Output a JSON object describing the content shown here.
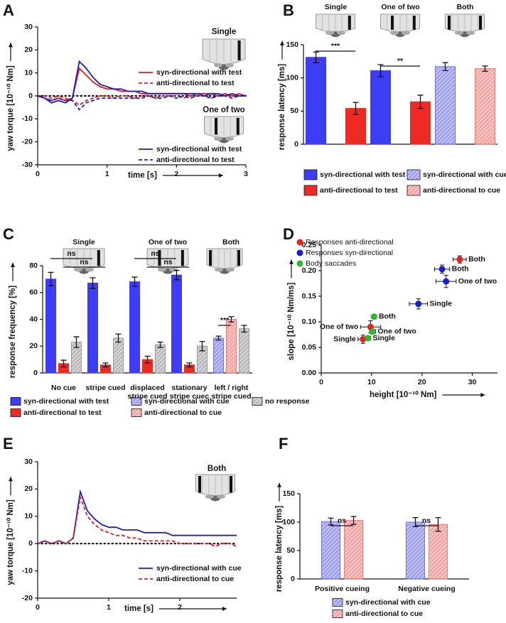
{
  "chart_data": [
    {
      "panel": "A",
      "type": "line",
      "x_label": "time  [s]",
      "y_label": "yaw torque  [10⁻¹⁰ Nm]",
      "x": [
        0,
        0.1,
        0.2,
        0.3,
        0.4,
        0.5,
        0.6,
        0.7,
        0.8,
        0.9,
        1,
        1.1,
        1.2,
        1.3,
        1.4,
        1.5,
        1.6,
        1.7,
        1.8,
        1.9,
        2,
        2.1,
        2.2,
        2.3,
        2.4,
        2.5,
        2.6,
        2.7,
        2.8,
        2.9,
        3
      ],
      "xlim": [
        0,
        3
      ],
      "xticks": [
        0,
        1,
        2,
        3
      ],
      "ylim": [
        -30,
        30
      ],
      "yticks": [
        -30,
        -20,
        -10,
        0,
        10,
        20,
        30
      ],
      "conditions": [
        "Single",
        "One of two"
      ],
      "series": [
        {
          "name": "syn-directional with test",
          "color": "#e01b1b",
          "dash": false,
          "values": [
            0,
            -1,
            -2,
            -1,
            -2,
            -1,
            12,
            9,
            6,
            4,
            3,
            3,
            2,
            2,
            2,
            1,
            1,
            1,
            1,
            1,
            1,
            1,
            0,
            1,
            1,
            1,
            0,
            1,
            0,
            1,
            0
          ]
        },
        {
          "name": "anti-directional to test",
          "color": "#e01b1b",
          "dash": true,
          "values": [
            0,
            0,
            -1,
            0,
            -1,
            -2,
            -4,
            -2,
            -1,
            0,
            0,
            -1,
            0,
            0,
            -1,
            0,
            0,
            -1,
            0,
            0,
            0,
            -1,
            0,
            0,
            0,
            -1,
            0,
            0,
            0,
            0,
            0
          ]
        },
        {
          "name": "syn-directional with test",
          "color": "#1f1fbf",
          "dash": false,
          "values": [
            0,
            -1,
            -3,
            -2,
            -3,
            -1,
            15,
            12,
            8,
            5,
            4,
            3,
            3,
            2,
            2,
            2,
            1,
            1,
            1,
            1,
            1,
            1,
            1,
            1,
            0,
            1,
            1,
            0,
            1,
            0,
            0
          ]
        },
        {
          "name": "anti-directional to test",
          "color": "#1f1fbf",
          "dash": true,
          "values": [
            0,
            -1,
            -2,
            -1,
            -2,
            -2,
            -6,
            -3,
            -2,
            -1,
            -1,
            -1,
            -1,
            -1,
            -1,
            -1,
            0,
            -1,
            -1,
            0,
            -1,
            0,
            -1,
            0,
            0,
            -1,
            0,
            0,
            -1,
            0,
            0
          ]
        }
      ]
    },
    {
      "panel": "B",
      "type": "bar",
      "categories": [
        "Single",
        "One of two",
        "Both"
      ],
      "y_label": "response latency  [ms]",
      "ylim": [
        0,
        150
      ],
      "yticks": [
        0,
        50,
        100,
        150
      ],
      "series": [
        {
          "name": "syn-directional with test",
          "color": "#3d3df5",
          "hatched": false,
          "values": [
            131,
            111,
            null
          ],
          "errors": [
            8,
            9,
            null
          ]
        },
        {
          "name": "anti-directional to test",
          "color": "#ee2a24",
          "hatched": false,
          "values": [
            54,
            64,
            null
          ],
          "errors": [
            9,
            10,
            null
          ]
        },
        {
          "name": "syn-directional with cue",
          "color": "#6f6ff0",
          "hatched": true,
          "values": [
            null,
            null,
            117
          ],
          "errors": [
            null,
            null,
            6
          ]
        },
        {
          "name": "anti-directional to cue",
          "color": "#f07a76",
          "hatched": true,
          "values": [
            null,
            null,
            114
          ],
          "errors": [
            null,
            null,
            4
          ]
        }
      ],
      "annotations": [
        "***",
        "**"
      ]
    },
    {
      "panel": "C",
      "type": "bar",
      "groups": [
        "Single",
        "One of two",
        "Both"
      ],
      "categories": [
        "No cue",
        "stripe cued",
        "displaced\nstripe cued",
        "stationary\nstripe cuec",
        "left / right\nstripe cued"
      ],
      "y_label": "response frequency  [%]",
      "ylim": [
        0,
        80
      ],
      "yticks": [
        0,
        20,
        40,
        60,
        80
      ],
      "series": [
        {
          "name": "syn-directional with test",
          "color": "#3d3df5",
          "hatched": false,
          "values": [
            70,
            67,
            68,
            73,
            null
          ],
          "errors": [
            5,
            4,
            3.5,
            3.5,
            null
          ]
        },
        {
          "name": "anti-directional to test",
          "color": "#ee2a24",
          "hatched": false,
          "values": [
            7,
            6,
            10,
            6,
            null
          ],
          "errors": [
            2.5,
            1.5,
            2.5,
            1.5,
            null
          ]
        },
        {
          "name": "syn-directional with cue",
          "color": "#6f6ff0",
          "hatched": true,
          "values": [
            null,
            null,
            null,
            null,
            26
          ],
          "errors": [
            null,
            null,
            null,
            null,
            1.5
          ]
        },
        {
          "name": "anti-directional to cue",
          "color": "#f07a76",
          "hatched": true,
          "values": [
            null,
            null,
            null,
            null,
            40
          ],
          "errors": [
            null,
            null,
            null,
            null,
            2
          ]
        },
        {
          "name": "no response",
          "color": "#9a9a9a",
          "hatched": true,
          "values": [
            23,
            26,
            21,
            20,
            33
          ],
          "errors": [
            4,
            3,
            2,
            3.5,
            2.5
          ]
        }
      ],
      "annotations": [
        "ns",
        "ns",
        "ns",
        "ns",
        "***"
      ]
    },
    {
      "panel": "D",
      "type": "scatter",
      "x_label": "height  [10⁻¹⁰ Nm]",
      "y_label": "slope  [10⁻¹⁰ Nm/ms]",
      "xlim": [
        0,
        35
      ],
      "xticks": [
        0,
        10,
        20,
        30
      ],
      "ylim": [
        0,
        0.25
      ],
      "yticks": [
        {
          "value": 0,
          "label": "0.00"
        },
        {
          "value": 0.05,
          "label": "0.05"
        },
        {
          "value": 0.1,
          "label": "0.10"
        },
        {
          "value": 0.15,
          "label": "0.15"
        },
        {
          "value": 0.2,
          "label": "0.20"
        },
        {
          "value": 0.25,
          "label": "0.25"
        }
      ],
      "series": [
        {
          "name": "Responses anti-directional",
          "color": "#e8231c",
          "x": [
            27.5,
            9.8,
            8.3
          ],
          "values": [
            0.222,
            0.09,
            0.066
          ],
          "x_errors": [
            1.3,
            2,
            1
          ],
          "errors": [
            0.007,
            0.012,
            0.008
          ],
          "labels": [
            "Both",
            "One of two",
            "Single"
          ]
        },
        {
          "name": "Responses syn-directional",
          "color": "#1c1cc8",
          "x": [
            24,
            24.8,
            19.3
          ],
          "values": [
            0.203,
            0.179,
            0.135
          ],
          "x_errors": [
            1.5,
            2,
            1.8
          ],
          "errors": [
            0.008,
            0.012,
            0.01
          ],
          "labels": [
            "Both",
            "One of two",
            "Single"
          ]
        },
        {
          "name": "Body saccades",
          "color": "#2db82d",
          "x": [
            10.5,
            10.2,
            9.3
          ],
          "values": [
            0.11,
            0.081,
            0.068
          ],
          "x_errors": [
            0.5,
            0.6,
            0.5
          ],
          "errors": [
            0.004,
            0.005,
            0.004
          ],
          "labels": [
            "Both",
            "One of two",
            "Single"
          ]
        }
      ]
    },
    {
      "panel": "E",
      "type": "line",
      "x_label": "time  [s]",
      "y_label": "yaw torque  [10⁻¹⁰ Nm]",
      "x": [
        0,
        0.1,
        0.2,
        0.3,
        0.4,
        0.5,
        0.6,
        0.7,
        0.8,
        0.9,
        1,
        1.1,
        1.2,
        1.3,
        1.4,
        1.5,
        1.6,
        1.7,
        1.8,
        1.9,
        2,
        2.1,
        2.2,
        2.3,
        2.4,
        2.5,
        2.6,
        2.7,
        2.8
      ],
      "xlim": [
        0,
        2.8
      ],
      "xticks": [
        0,
        1,
        2
      ],
      "ylim": [
        -20,
        30
      ],
      "yticks": [
        -20,
        -10,
        0,
        10,
        20,
        30
      ],
      "conditions": [
        "Both"
      ],
      "series": [
        {
          "name": "syn-directional with cue",
          "color": "#1f1fbf",
          "dash": false,
          "values": [
            0,
            1,
            0,
            1,
            0,
            2,
            19,
            12,
            9,
            7,
            6,
            6,
            5,
            5,
            5,
            4,
            4,
            4,
            4,
            3,
            3,
            3,
            3,
            3,
            3,
            3,
            3,
            3,
            3
          ]
        },
        {
          "name": "anti-directional to cue",
          "color": "#e01b1b",
          "dash": true,
          "values": [
            0,
            1,
            0,
            1,
            0,
            2,
            17,
            10,
            7,
            5,
            4,
            3,
            3,
            2,
            2,
            1,
            1,
            1,
            1,
            1,
            0,
            0,
            0,
            0,
            0,
            -1,
            0,
            0,
            -1
          ]
        }
      ]
    },
    {
      "panel": "F",
      "type": "bar",
      "categories": [
        "Positive cueing",
        "Negative cueing"
      ],
      "y_label": "response latency  [ms]",
      "ylim": [
        0,
        150
      ],
      "yticks": [
        0,
        50,
        100,
        150
      ],
      "series": [
        {
          "name": "syn-directional with cue",
          "color": "#6f6ff0",
          "hatched": true,
          "values": [
            101,
            100
          ],
          "errors": [
            6,
            8
          ]
        },
        {
          "name": "anti-directional to cue",
          "color": "#f07a76",
          "hatched": true,
          "values": [
            103,
            96
          ],
          "errors": [
            7,
            12
          ]
        }
      ],
      "annotations": [
        "ns",
        "ns"
      ]
    }
  ]
}
